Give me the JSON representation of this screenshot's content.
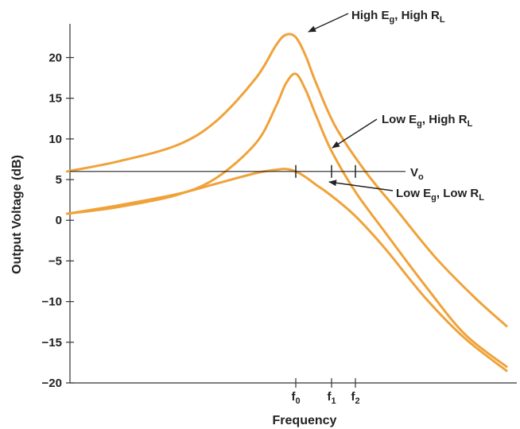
{
  "chart_data": {
    "type": "line",
    "title": "",
    "xlabel": "Frequency",
    "ylabel": "Output Voltage (dB)",
    "ylim": [
      -20,
      22
    ],
    "yticks": [
      20,
      15,
      10,
      5,
      0,
      -5,
      -10,
      -15,
      -20
    ],
    "ytick_labels": [
      "20",
      "15",
      "10",
      "5",
      "0",
      "−5",
      "−10",
      "−15",
      "−20"
    ],
    "x_axis_ticks": [
      {
        "base": "f",
        "sub": "0",
        "x": 0
      },
      {
        "base": "f",
        "sub": "1",
        "x": 0.18
      },
      {
        "base": "f",
        "sub": "2",
        "x": 0.3
      }
    ],
    "reference_line": {
      "base": "V",
      "sub": "o",
      "y": 6
    },
    "series": [
      {
        "name_parts": {
          "a": "High E",
          "a_sub": "g",
          "b": ", High R",
          "b_sub": "L"
        },
        "x": [
          -1.15,
          -0.9,
          -0.6,
          -0.4,
          -0.2,
          -0.1,
          -0.05,
          0.0,
          0.05,
          0.1,
          0.2,
          0.35,
          0.5,
          0.7,
          0.9,
          1.06
        ],
        "y": [
          6,
          7.2,
          9.2,
          12.2,
          17.5,
          21.5,
          22.8,
          22.5,
          20.2,
          17,
          11.5,
          6,
          1.5,
          -4.5,
          -9.5,
          -13
        ]
      },
      {
        "name_parts": {
          "a": "Low E",
          "a_sub": "g",
          "b": ", High R",
          "b_sub": "L"
        },
        "x": [
          -1.15,
          -0.9,
          -0.6,
          -0.4,
          -0.2,
          -0.1,
          -0.05,
          0.0,
          0.05,
          0.1,
          0.18,
          0.3,
          0.45,
          0.65,
          0.85,
          1.06
        ],
        "y": [
          0.8,
          1.6,
          3.1,
          5.2,
          9.5,
          14,
          16.8,
          18,
          16,
          13,
          8.5,
          3.5,
          -1.5,
          -8,
          -14,
          -18
        ]
      },
      {
        "name_parts": {
          "a": "Low E",
          "a_sub": "g",
          "b": ", Low R",
          "b_sub": "L"
        },
        "x": [
          -1.15,
          -0.9,
          -0.6,
          -0.4,
          -0.2,
          -0.1,
          -0.05,
          0.0,
          0.05,
          0.1,
          0.18,
          0.3,
          0.45,
          0.65,
          0.85,
          1.06
        ],
        "y": [
          0.8,
          1.8,
          3.2,
          4.5,
          5.8,
          6.2,
          6.3,
          6.0,
          5.3,
          4.4,
          3.0,
          0.5,
          -3.5,
          -9.5,
          -14.5,
          -18.5
        ]
      }
    ],
    "xlim": [
      -1.15,
      1.08
    ],
    "line_color": "#f0a23a",
    "grid": false
  }
}
